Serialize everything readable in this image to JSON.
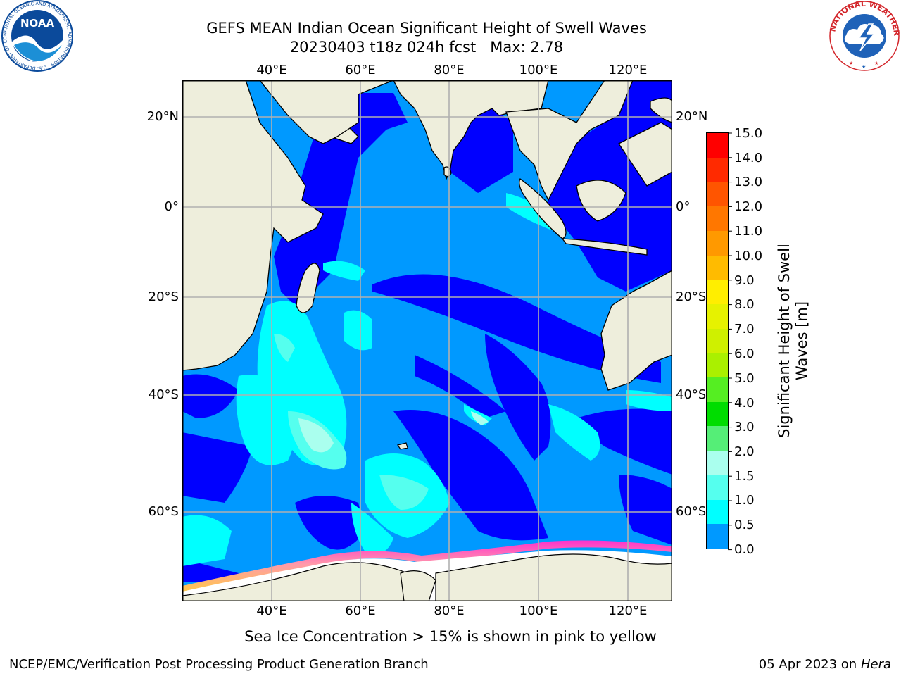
{
  "header": {
    "title_line1": "GEFS MEAN Indian Ocean Significant Height of Swell Waves",
    "title_line2": "20230403 t18z 024h fcst   Max: 2.78"
  },
  "logos": {
    "noaa": {
      "text": "NOAA",
      "ring_text": "NATIONAL OCEANIC AND ATMOSPHERIC ADMINISTRATION · U.S. DEPARTMENT OF COMMERCE",
      "ring_color": "#0b4a9b",
      "inner_color": "#1c8fd6"
    },
    "nws": {
      "ring_text": "NATIONAL WEATHER SERVICE",
      "ring_color": "#d3252a",
      "inner_color": "#1f62b8"
    }
  },
  "map": {
    "lon_labels_top": [
      "40°E",
      "60°E",
      "80°E",
      "100°E",
      "120°E"
    ],
    "lon_labels_bottom": [
      "40°E",
      "60°E",
      "80°E",
      "100°E",
      "120°E"
    ],
    "lat_labels_left": [
      "20°N",
      "0°",
      "20°S",
      "40°S",
      "60°S"
    ],
    "lat_labels_right": [
      "20°N",
      "0°",
      "20°S",
      "40°S",
      "60°S"
    ],
    "land_color": "#eeeedc",
    "grid_color": "#b0b0b0"
  },
  "colorbar": {
    "label": "Significant Height of Swell Waves [m]",
    "ticks": [
      "15.0",
      "14.0",
      "13.0",
      "12.0",
      "11.0",
      "10.0",
      "9.0",
      "8.0",
      "7.0",
      "6.0",
      "5.0",
      "4.0",
      "3.0",
      "2.0",
      "1.5",
      "1.0",
      "0.5",
      "0.0"
    ],
    "colors_top_to_bottom": [
      "#ff0000",
      "#ff2a00",
      "#ff5500",
      "#ff7700",
      "#ff9900",
      "#ffbb00",
      "#ffee00",
      "#e6f200",
      "#cff000",
      "#aaf000",
      "#55ee22",
      "#00dd00",
      "#55ee77",
      "#aaffee",
      "#55ffee",
      "#00ffff",
      "#0099ff",
      "#0000ff"
    ]
  },
  "caption": "Sea Ice Concentration > 15% is shown in pink to yellow",
  "footer": {
    "left": "NCEP/EMC/Verification Post Processing Product Generation Branch",
    "right_prefix": "05 Apr 2023 on ",
    "right_host": "Hera"
  }
}
